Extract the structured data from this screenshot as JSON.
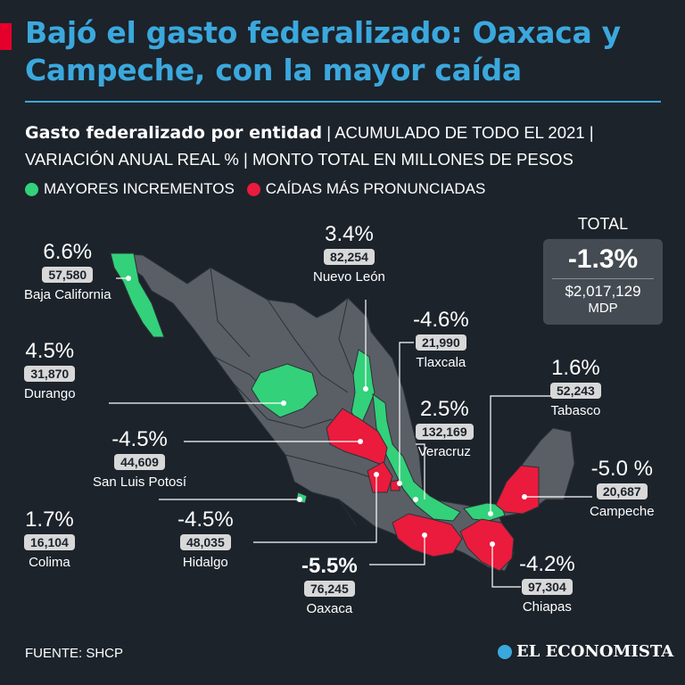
{
  "title": "Bajó el gasto federalizado: Oaxaca y Campeche, con la mayor caída",
  "subtitle": {
    "bold": "Gasto federalizado por entidad",
    "line1_rest": " | ACUMULADO DE TODO EL 2021 |",
    "line2": "VARIACIÓN ANUAL REAL % | MONTO TOTAL EN MILLONES DE PESOS"
  },
  "legend": {
    "increase": "MAYORES INCREMENTOS",
    "decrease": "CAÍDAS MÁS PRONUNCIADAS",
    "increase_color": "#33d17a",
    "decrease_color": "#ea1b3c"
  },
  "total": {
    "label": "TOTAL",
    "pct": "-1.3%",
    "amount": "$2,017,129",
    "unit": "MDP"
  },
  "states": [
    {
      "name": "Baja California",
      "pct": "6.6%",
      "amount": "57,580",
      "type": "increase"
    },
    {
      "name": "Durango",
      "pct": "4.5%",
      "amount": "31,870",
      "type": "increase"
    },
    {
      "name": "San Luis Potosí",
      "pct": "-4.5%",
      "amount": "44,609",
      "type": "decrease"
    },
    {
      "name": "Colima",
      "pct": "1.7%",
      "amount": "16,104",
      "type": "increase"
    },
    {
      "name": "Hidalgo",
      "pct": "-4.5%",
      "amount": "48,035",
      "type": "decrease"
    },
    {
      "name": "Oaxaca",
      "pct": "-5.5%",
      "amount": "76,245",
      "type": "decrease"
    },
    {
      "name": "Nuevo León",
      "pct": "3.4%",
      "amount": "82,254",
      "type": "increase"
    },
    {
      "name": "Tlaxcala",
      "pct": "-4.6%",
      "amount": "21,990",
      "type": "decrease"
    },
    {
      "name": "Veracruz",
      "pct": "2.5%",
      "amount": "132,169",
      "type": "increase"
    },
    {
      "name": "Tabasco",
      "pct": "1.6%",
      "amount": "52,243",
      "type": "increase"
    },
    {
      "name": "Campeche",
      "pct": "-5.0 %",
      "amount": "20,687",
      "type": "decrease"
    },
    {
      "name": "Chiapas",
      "pct": "-4.2%",
      "amount": "97,304",
      "type": "decrease"
    }
  ],
  "source": "FUENTE: SHCP",
  "brand": "EL ECONOMISTA",
  "brand_icon": "globe-logo-icon"
}
